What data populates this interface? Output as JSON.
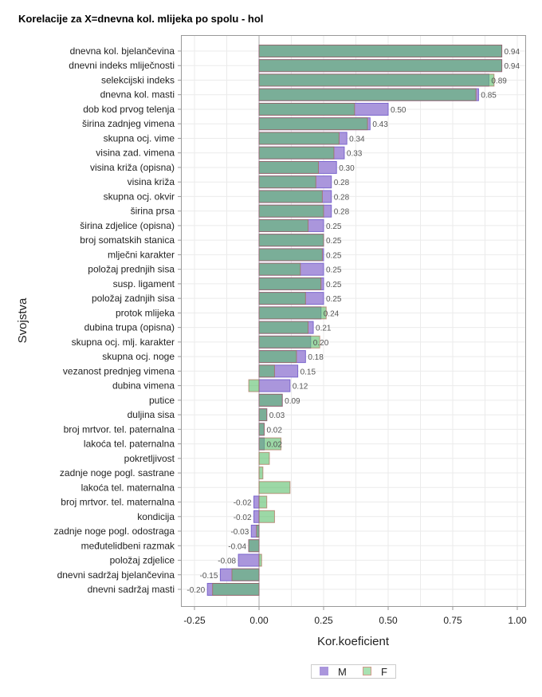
{
  "chart_data": {
    "type": "bar",
    "orientation": "horizontal",
    "title": "Korelacije za X=dnevna kol. mlijeka po spolu - hol",
    "xlabel": "Kor.koeficient",
    "ylabel": "Svojstva",
    "xlim": [
      -0.27,
      1.03
    ],
    "xticks": [
      -0.25,
      0.0,
      0.25,
      0.5,
      0.75,
      1.0
    ],
    "xtick_labels": [
      "-0.25",
      "0.00",
      "0.25",
      "0.50",
      "0.75",
      "1.00"
    ],
    "grid": true,
    "legend_position": "bottom",
    "colors": {
      "M": "#aa96dc",
      "F": "#5abe6b"
    },
    "categories": [
      "dnevna kol. bjelančevina",
      "dnevni indeks mliječnosti",
      "selekcijski indeks",
      "dnevna kol. masti",
      "dob kod prvog telenja",
      "širina zadnjeg vimena",
      "skupna ocj. vime",
      "visina zad. vimena",
      "visina križa (opisna)",
      "visina križa",
      "skupna ocj. okvir",
      "širina prsa",
      "širina zdjelice (opisna)",
      "broj somatskih stanica",
      "mlječni karakter",
      "položaj prednjih sisa",
      "susp. ligament",
      "položaj zadnjih sisa",
      "protok mlijeka",
      "dubina trupa (opisna)",
      "skupna ocj. mlj. karakter",
      "skupna ocj. noge",
      "vezanost prednjeg vimena",
      "dubina vimena",
      "putice",
      "duljina sisa",
      "broj mrtvor. tel. paternalna",
      "lakoća tel. paternalna",
      "pokretljivost",
      "zadnje noge pogl. sastrane",
      "lakoća tel. maternalna",
      "broj mrtvor. tel. maternalna",
      "kondicija",
      "zadnje noge pogl. odostraga",
      "međutelidbeni razmak",
      "položaj zdjelice",
      "dnevni sadržaj bjelančevina",
      "dnevni sadržaj masti"
    ],
    "series": [
      {
        "name": "M",
        "values": [
          0.94,
          0.94,
          0.89,
          0.85,
          0.5,
          0.43,
          0.34,
          0.33,
          0.3,
          0.28,
          0.28,
          0.28,
          0.25,
          0.25,
          0.25,
          0.25,
          0.25,
          0.25,
          0.24,
          0.21,
          0.2,
          0.18,
          0.15,
          0.12,
          0.09,
          0.03,
          0.02,
          0.02,
          null,
          null,
          null,
          -0.02,
          -0.02,
          -0.03,
          -0.04,
          -0.08,
          -0.15,
          -0.2
        ],
        "labels": [
          "0.94",
          "0.94",
          "0.89",
          "0.85",
          "0.50",
          "0.43",
          "0.34",
          "0.33",
          "0.30",
          "0.28",
          "0.28",
          "0.28",
          "0.25",
          "0.25",
          "0.25",
          "0.25",
          "0.25",
          "0.25",
          "0.24",
          "0.21",
          "0.20",
          "0.18",
          "0.15",
          "0.12",
          "0.09",
          "0.03",
          "0.02",
          "0.02",
          "",
          "",
          "",
          "-0.02",
          "-0.02",
          "-0.03",
          "-0.04",
          "-0.08",
          "-0.15",
          "-0.20"
        ]
      },
      {
        "name": "F",
        "values": [
          0.94,
          0.94,
          0.91,
          0.84,
          0.37,
          0.42,
          0.31,
          0.29,
          0.23,
          0.22,
          0.245,
          0.25,
          0.19,
          0.25,
          0.245,
          0.16,
          0.24,
          0.18,
          0.26,
          0.19,
          0.235,
          0.145,
          0.06,
          -0.04,
          0.09,
          0.03,
          0.02,
          0.085,
          0.04,
          0.015,
          0.12,
          0.03,
          0.06,
          -0.01,
          -0.04,
          0.01,
          -0.105,
          -0.18
        ]
      }
    ]
  }
}
